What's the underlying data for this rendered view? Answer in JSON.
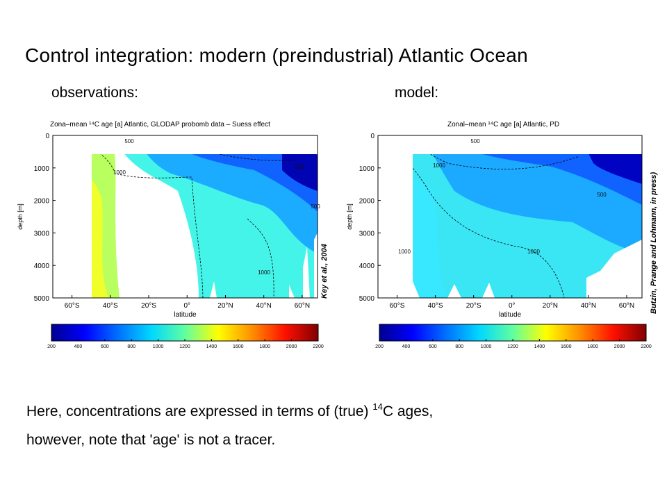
{
  "slide": {
    "title": "Control integration: modern (preindustrial) Atlantic Ocean",
    "obs_label": "observations:",
    "model_label": "model:",
    "footer_line1_pre": "Here, concentrations are expressed in terms of (true) ",
    "footer_line1_sup": "14",
    "footer_line1_post": "C  ages,",
    "footer_line2": "however, note that 'age' is not a tracer."
  },
  "chart_data": [
    {
      "type": "heatmap",
      "title": "Zona–mean ¹⁴C age [a] Atlantic, GLODAP probomb data – Suess effect",
      "xlabel": "latitude",
      "ylabel": "depth [m]",
      "credit": "Key et al., 2004",
      "x_ticks": [
        "60°S",
        "40°S",
        "20°S",
        "0°",
        "20°N",
        "40°N",
        "60°N"
      ],
      "y_ticks": [
        "0",
        "1000",
        "2000",
        "3000",
        "4000",
        "5000"
      ],
      "xlim": [
        -70,
        68
      ],
      "ylim": [
        0,
        5000
      ],
      "contour_labels": [
        "500",
        "1000",
        "500",
        "500",
        "1000"
      ],
      "colorbar": {
        "ticks": [
          "200",
          "400",
          "600",
          "800",
          "1000",
          "1200",
          "1400",
          "1600",
          "1800",
          "2000",
          "2200"
        ],
        "range": [
          200,
          2200
        ]
      }
    },
    {
      "type": "heatmap",
      "title": "Zonal–mean ¹⁴C age [a] Atlantic, PD",
      "xlabel": "latitude",
      "ylabel": "depth [m]",
      "credit": "Butzin, Prange and Lohmann, in press)",
      "x_ticks": [
        "60°S",
        "40°S",
        "20°S",
        "0°",
        "20°N",
        "40°N",
        "60°N"
      ],
      "y_ticks": [
        "0",
        "1000",
        "2000",
        "3000",
        "4000",
        "5000"
      ],
      "xlim": [
        -70,
        68
      ],
      "ylim": [
        0,
        5000
      ],
      "contour_labels": [
        "500",
        "1000",
        "500",
        "1000",
        "1000"
      ],
      "colorbar": {
        "ticks": [
          "200",
          "400",
          "600",
          "800",
          "1000",
          "1200",
          "1400",
          "1600",
          "1800",
          "2000",
          "2200"
        ],
        "range": [
          200,
          2200
        ]
      }
    }
  ],
  "colors": {
    "colormap": [
      "#00008f",
      "#0000ff",
      "#0070ff",
      "#00d8ff",
      "#60ffa0",
      "#ffff00",
      "#ff9000",
      "#ff1000",
      "#800000"
    ]
  }
}
